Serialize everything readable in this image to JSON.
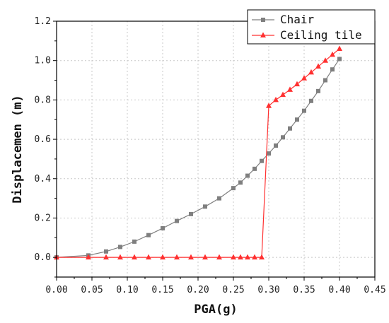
{
  "chart_data": {
    "type": "line",
    "xlabel": "PGA(g)",
    "ylabel": "Displacemen (m)",
    "xlim": [
      0.0,
      0.45
    ],
    "ylim": [
      -0.1,
      1.2
    ],
    "x_ticks": [
      0.0,
      0.05,
      0.1,
      0.15,
      0.2,
      0.25,
      0.3,
      0.35,
      0.4,
      0.45
    ],
    "x_tick_labels": [
      "0.00",
      "0.05",
      "0.10",
      "0.15",
      "0.20",
      "0.25",
      "0.30",
      "0.35",
      "0.40",
      "0.45"
    ],
    "y_ticks": [
      0.0,
      0.2,
      0.4,
      0.6,
      0.8,
      1.0,
      1.2
    ],
    "y_tick_labels": [
      "0.0",
      "0.2",
      "0.4",
      "0.6",
      "0.8",
      "1.0",
      "1.2"
    ],
    "grid": true,
    "legend_position": "top-right",
    "series": [
      {
        "name": "Chair",
        "color": "#7f7f7f",
        "marker": "square",
        "x": [
          0.0,
          0.045,
          0.07,
          0.09,
          0.11,
          0.13,
          0.15,
          0.17,
          0.19,
          0.21,
          0.23,
          0.25,
          0.26,
          0.27,
          0.28,
          0.29,
          0.3,
          0.31,
          0.32,
          0.33,
          0.34,
          0.35,
          0.36,
          0.37,
          0.38,
          0.39,
          0.4
        ],
        "y": [
          0.0,
          0.01,
          0.03,
          0.053,
          0.08,
          0.113,
          0.148,
          0.185,
          0.22,
          0.258,
          0.3,
          0.352,
          0.38,
          0.415,
          0.45,
          0.49,
          0.528,
          0.568,
          0.61,
          0.655,
          0.7,
          0.745,
          0.795,
          0.845,
          0.9,
          0.955,
          1.008
        ]
      },
      {
        "name": "Ceiling tile",
        "color": "#ff3030",
        "marker": "triangle",
        "x": [
          0.0,
          0.045,
          0.07,
          0.09,
          0.11,
          0.13,
          0.15,
          0.17,
          0.19,
          0.21,
          0.23,
          0.25,
          0.26,
          0.27,
          0.28,
          0.29,
          0.3,
          0.31,
          0.32,
          0.33,
          0.34,
          0.35,
          0.36,
          0.37,
          0.38,
          0.39,
          0.4
        ],
        "y": [
          0.0,
          0.0,
          0.0,
          0.0,
          0.0,
          0.0,
          0.0,
          0.0,
          0.0,
          0.0,
          0.0,
          0.0,
          0.0,
          0.0,
          0.0,
          0.0,
          0.77,
          0.8,
          0.826,
          0.852,
          0.88,
          0.91,
          0.94,
          0.97,
          1.0,
          1.03,
          1.06
        ]
      }
    ]
  }
}
